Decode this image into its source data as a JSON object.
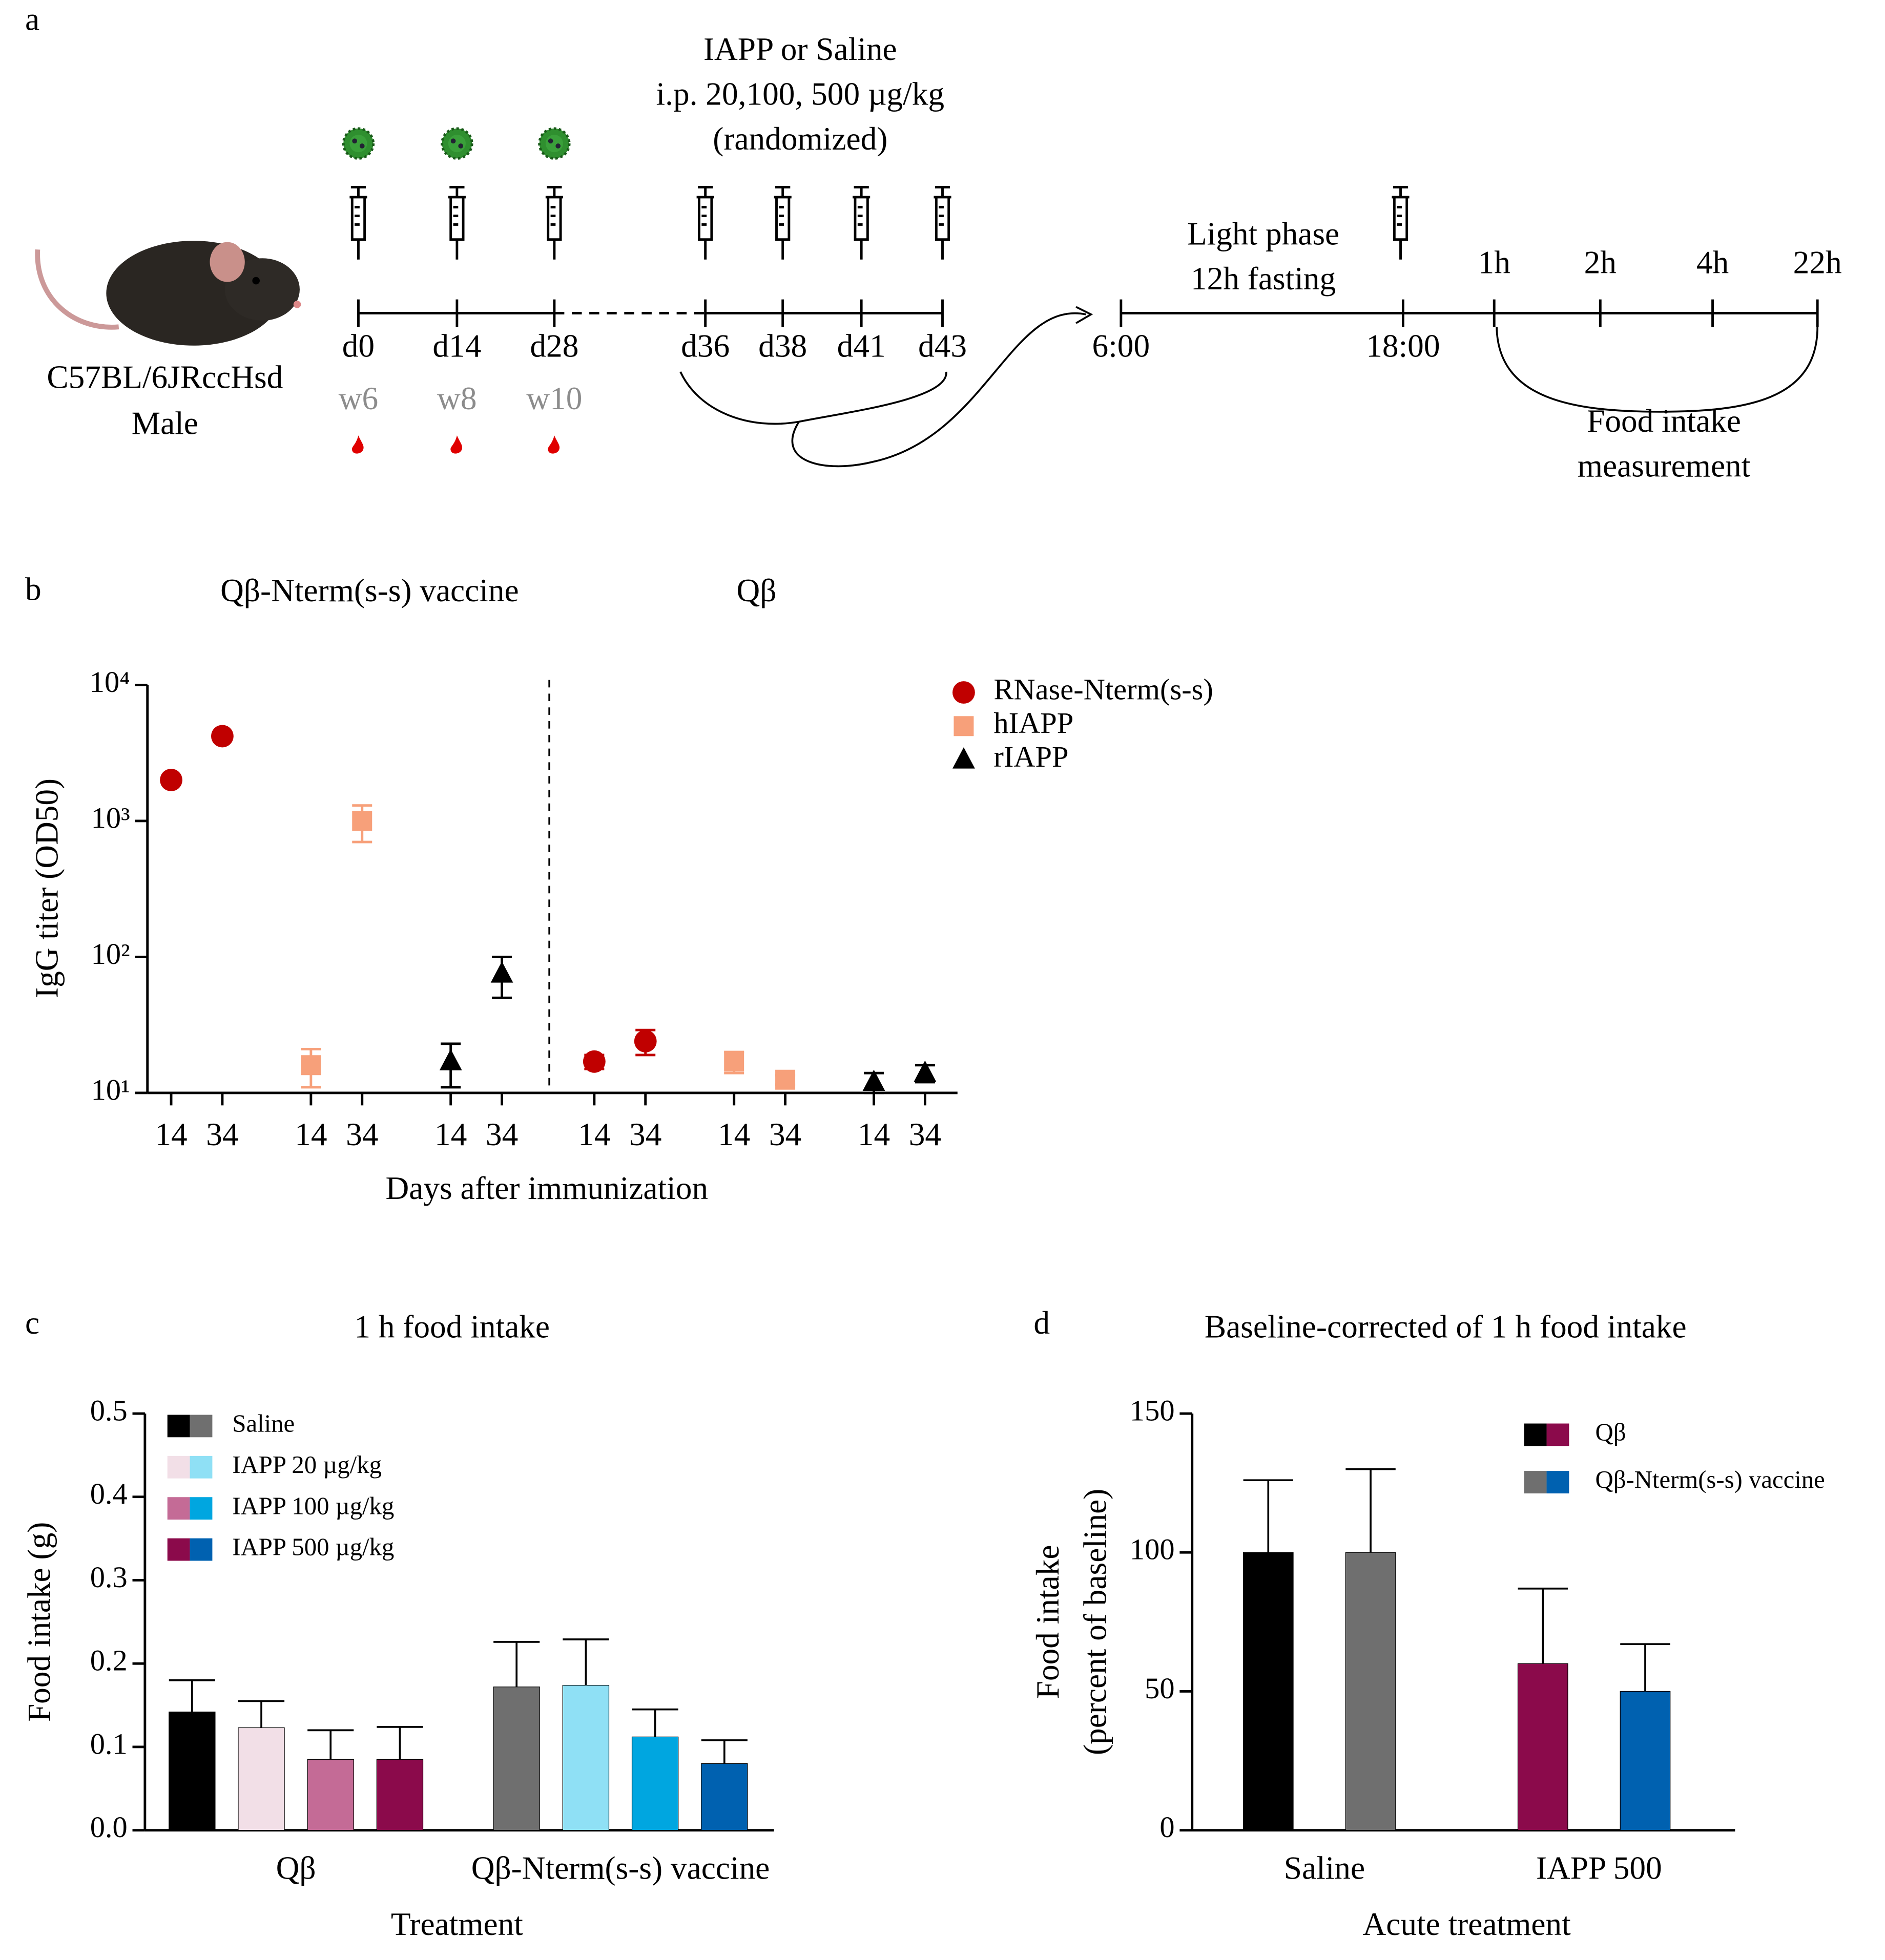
{
  "schematic": {
    "label": "a",
    "strain": "C57BL/6JRccHsd",
    "sex": "Male",
    "immunization_days": [
      "d0",
      "d14",
      "d28"
    ],
    "weeks": [
      "w6",
      "w8",
      "w10"
    ],
    "injection_title": [
      "IAPP or Saline",
      "i.p. 20,100, 500 µg/kg",
      "(randomized)"
    ],
    "injection_days": [
      "d36",
      "d38",
      "d41",
      "d43"
    ],
    "fasting": [
      "Light phase",
      "12h fasting"
    ],
    "clock": [
      "6:00",
      "18:00"
    ],
    "timepoints": [
      "1h",
      "2h",
      "4h",
      "22h"
    ],
    "measurement": [
      "Food intake",
      "measurement"
    ]
  },
  "chart_data": [
    {
      "panel": "b",
      "type": "scatter",
      "group_titles": [
        "Qβ-Nterm(s-s) vaccine",
        "Qβ"
      ],
      "categories": [
        "14",
        "34",
        "14",
        "34",
        "14",
        "34",
        "14",
        "34",
        "14",
        "34",
        "14",
        "34"
      ],
      "series": [
        {
          "name": "RNase-Nterm(s-s)",
          "color": "#c00000",
          "marker": "circle",
          "values": [
            2000,
            4200,
            null,
            null,
            null,
            null,
            17,
            24,
            null,
            null,
            null,
            null
          ],
          "errors": [
            null,
            null,
            null,
            null,
            null,
            null,
            2,
            5,
            null,
            null,
            null,
            null
          ]
        },
        {
          "name": "hIAPP",
          "color": "#f7a07a",
          "marker": "square",
          "values": [
            null,
            null,
            16,
            1000,
            null,
            null,
            null,
            null,
            17,
            12.5,
            null,
            null
          ],
          "errors": [
            null,
            null,
            5,
            300,
            null,
            null,
            null,
            null,
            3,
            1,
            null,
            null
          ]
        },
        {
          "name": "rIAPP",
          "color": "#000000",
          "marker": "triangle",
          "values": [
            null,
            null,
            null,
            null,
            17,
            75,
            null,
            null,
            null,
            null,
            12,
            14
          ],
          "errors": [
            null,
            null,
            null,
            null,
            6,
            25,
            null,
            null,
            null,
            null,
            2,
            2
          ]
        }
      ],
      "log_y": true,
      "ylim": [
        10,
        10000
      ],
      "yticks": [
        {
          "value": 10,
          "label": "10¹"
        },
        {
          "value": 100,
          "label": "10²"
        },
        {
          "value": 1000,
          "label": "10³"
        },
        {
          "value": 10000,
          "label": "10⁴"
        }
      ],
      "ylabel": "IgG titer (OD50)",
      "xlabel": "Days after immunization"
    },
    {
      "panel": "c",
      "type": "bar",
      "title": "1 h food intake",
      "categories": [
        "Qβ",
        "Qβ-Nterm(s-s) vaccine"
      ],
      "series": [
        {
          "name": "Saline",
          "colors": [
            "#000000",
            "#6f6f6f"
          ],
          "values": [
            0.142,
            0.172
          ],
          "errors": [
            0.038,
            0.054
          ]
        },
        {
          "name": "IAPP 20 µg/kg",
          "colors": [
            "#f2dfe7",
            "#8fe0f5"
          ],
          "values": [
            0.123,
            0.174
          ],
          "errors": [
            0.032,
            0.055
          ]
        },
        {
          "name": "IAPP 100 µg/kg",
          "colors": [
            "#c46b96",
            "#00a6e0"
          ],
          "values": [
            0.085,
            0.112
          ],
          "errors": [
            0.035,
            0.033
          ]
        },
        {
          "name": "IAPP 500 µg/kg",
          "colors": [
            "#8b0a4b",
            "#0061b0"
          ],
          "values": [
            0.085,
            0.08
          ],
          "errors": [
            0.039,
            0.028
          ]
        }
      ],
      "ylim": [
        0,
        0.5
      ],
      "yticks": [
        {
          "value": 0,
          "label": "0.0"
        },
        0.1,
        0.2,
        0.3,
        0.4,
        0.5
      ],
      "ylabel": "Food intake (g)",
      "xlabel": "Treatment"
    },
    {
      "panel": "d",
      "type": "bar",
      "title": "Baseline-corrected of 1 h food intake",
      "categories": [
        "Saline",
        "IAPP 500"
      ],
      "series": [
        {
          "name": "Qβ",
          "colors": [
            "#000000",
            "#8b0a4b"
          ],
          "values": [
            100,
            60
          ],
          "errors": [
            26,
            27
          ]
        },
        {
          "name": "Qβ-Nterm(s-s) vaccine",
          "colors": [
            "#6f6f6f",
            "#0061b0"
          ],
          "values": [
            100,
            50
          ],
          "errors": [
            30,
            17
          ]
        }
      ],
      "ylim": [
        0,
        150
      ],
      "yticks": [
        0,
        50,
        100,
        150
      ],
      "ylabel": [
        "Food intake",
        "(percent of baseline)"
      ],
      "xlabel": "Acute treatment"
    }
  ]
}
